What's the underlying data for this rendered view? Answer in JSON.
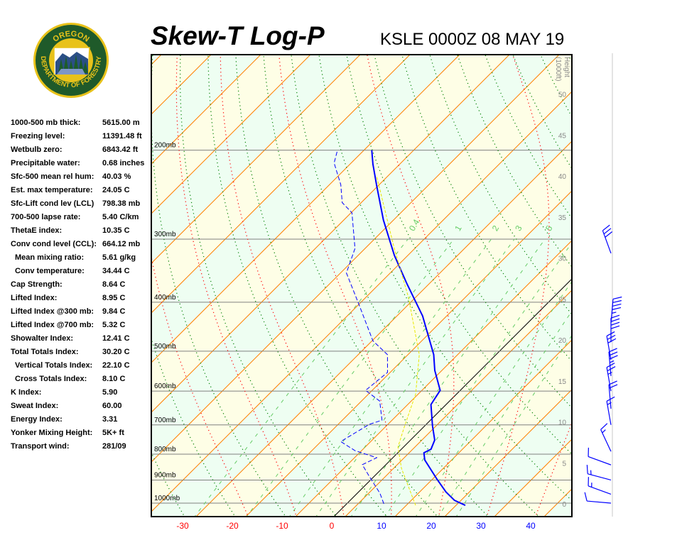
{
  "header": {
    "title": "Skew-T Log-P",
    "station_time": "KSLE 0000Z 08 MAY 19"
  },
  "logo": {
    "top_text": "OREGON",
    "bottom_text": "DEPARTMENT OF FORESTRY",
    "colors": {
      "ring": "#1f5a2a",
      "border": "#e8c21a",
      "inner": "#ffffff"
    }
  },
  "stats": [
    {
      "label": "1000-500 mb thick:",
      "value": "5615.00 m"
    },
    {
      "label": "Freezing level:",
      "value": "11391.48 ft"
    },
    {
      "label": "Wetbulb zero:",
      "value": "6843.42 ft"
    },
    {
      "label": "Precipitable water:",
      "value": "0.68 inches"
    },
    {
      "label": "Sfc-500 mean rel hum:",
      "value": "40.03 %"
    },
    {
      "label": "Est. max temperature:",
      "value": "24.05 C"
    },
    {
      "label": "Sfc-Lift cond lev (LCL)",
      "value": "798.38 mb"
    },
    {
      "label": "700-500 lapse rate:",
      "value": "5.40 C/km"
    },
    {
      "label": "ThetaE index:",
      "value": "10.35 C"
    },
    {
      "label": "Conv cond level (CCL):",
      "value": "664.12 mb"
    },
    {
      "label": "Mean mixing ratio:",
      "value": "5.61 g/kg"
    },
    {
      "label": "Conv temperature:",
      "value": "34.44 C"
    },
    {
      "label": "Cap Strength:",
      "value": "8.64 C"
    },
    {
      "label": "Lifted Index:",
      "value": "8.95 C"
    },
    {
      "label": "Lifted Index @300 mb:",
      "value": "9.84 C"
    },
    {
      "label": "Lifted Index @700 mb:",
      "value": "5.32 C"
    },
    {
      "label": "Showalter Index:",
      "value": "12.41 C"
    },
    {
      "label": "Total Totals Index:",
      "value": "30.20 C"
    },
    {
      "label": "Vertical Totals Index:",
      "value": "22.10 C"
    },
    {
      "label": "Cross Totals Index:",
      "value": "8.10 C"
    },
    {
      "label": "K Index:",
      "value": "5.90"
    },
    {
      "label": "Sweat Index:",
      "value": "60.00"
    },
    {
      "label": "Energy Index:",
      "value": "3.31"
    },
    {
      "label": "Yonker Mixing Height:",
      "value": "5K+ ft"
    },
    {
      "label": "Transport wind:",
      "value": "281/09"
    }
  ],
  "chart_data": {
    "type": "line",
    "title": "Skew-T Log-P",
    "x_axis": {
      "label": "",
      "ticks": [
        -30,
        -20,
        -10,
        0,
        10,
        20,
        30,
        40
      ],
      "unit": "C"
    },
    "y_axis": {
      "scale": "log",
      "pressure_levels": [
        1000,
        900,
        800,
        700,
        600,
        500,
        400,
        300,
        200
      ],
      "tick_labels": [
        "1000mb",
        "900mb",
        "800mb",
        "700mb",
        "600mb",
        "500mb",
        "400mb",
        "300mb",
        "200mb"
      ]
    },
    "height_axis": {
      "label": "Height (1000ft)",
      "ticks": [
        0,
        5,
        10,
        15,
        20,
        25,
        30,
        35,
        40,
        45,
        50
      ]
    },
    "mixing_ratio_labels": [
      "0.4",
      "1",
      "2",
      "3",
      "5"
    ],
    "mixing_ratio_values": [
      0.4,
      1,
      2,
      3,
      5,
      8,
      12,
      16,
      20
    ],
    "series": [
      {
        "role": "temperature",
        "color": "#0000ff",
        "style": "solid",
        "pressure": [
          1010,
          987,
          950,
          896,
          821,
          795,
          782,
          750,
          703,
          638,
          598,
          546,
          508,
          426,
          368,
          323,
          275,
          235,
          213,
          200
        ],
        "temp": [
          25.3,
          22.1,
          18.7,
          14.3,
          8.0,
          6.4,
          7.1,
          6.0,
          2.7,
          -1.9,
          -2.9,
          -8.0,
          -11.4,
          -21.4,
          -31.0,
          -39.3,
          -48.6,
          -56.9,
          -62.0,
          -65.0
        ]
      },
      {
        "role": "dewpoint",
        "color": "#0000ff",
        "style": "dashed",
        "pressure": [
          1003,
          956,
          887,
          839,
          813,
          787,
          755,
          698,
          685,
          628,
          598,
          551,
          508,
          477,
          405,
          350,
          313,
          266,
          254,
          234,
          212,
          200
        ],
        "temp": [
          8.6,
          5.7,
          0.3,
          -3.6,
          -2.1,
          -7.9,
          -12.6,
          -10.3,
          -8.6,
          -12.9,
          -17.9,
          -17.1,
          -20.7,
          -26.4,
          -36.4,
          -45.4,
          -48.6,
          -56.4,
          -60.4,
          -64.3,
          -70.0,
          -71.9
        ]
      },
      {
        "role": "parcel",
        "color": "#e8e800",
        "style": "dashed",
        "pressure": [
          1010,
          853,
          774,
          703,
          608,
          508,
          392,
          313,
          226
        ],
        "temp": [
          15.3,
          5.0,
          0.0,
          -2.9,
          -7.1,
          -14.3,
          -27.9,
          -40.7,
          -58.6
        ]
      }
    ],
    "wind_barbs": [
      {
        "pressure": 1000,
        "dir": 275,
        "speed": 10
      },
      {
        "pressure": 960,
        "dir": 290,
        "speed": 15
      },
      {
        "pressure": 900,
        "dir": 285,
        "speed": 15
      },
      {
        "pressure": 840,
        "dir": 290,
        "speed": 10
      },
      {
        "pressure": 790,
        "dir": 335,
        "speed": 15
      },
      {
        "pressure": 700,
        "dir": 350,
        "speed": 15
      },
      {
        "pressure": 650,
        "dir": 355,
        "speed": 20
      },
      {
        "pressure": 600,
        "dir": 350,
        "speed": 25
      },
      {
        "pressure": 560,
        "dir": 355,
        "speed": 35
      },
      {
        "pressure": 520,
        "dir": 350,
        "speed": 30
      },
      {
        "pressure": 480,
        "dir": 0,
        "speed": 40
      },
      {
        "pressure": 440,
        "dir": 5,
        "speed": 45
      },
      {
        "pressure": 320,
        "dir": 340,
        "speed": 30
      }
    ],
    "colors": {
      "isotherm": "#ff8000",
      "dry_adiabat": "#008000",
      "moist_adiabat": "#ff0000",
      "mixing_ratio": "#66cc66",
      "band_a": "#eefef2",
      "band_b": "#fefee6",
      "isobar": "#808080",
      "neg_tick": "#ff0000",
      "pos_tick": "#0000ff"
    },
    "grid": true
  }
}
